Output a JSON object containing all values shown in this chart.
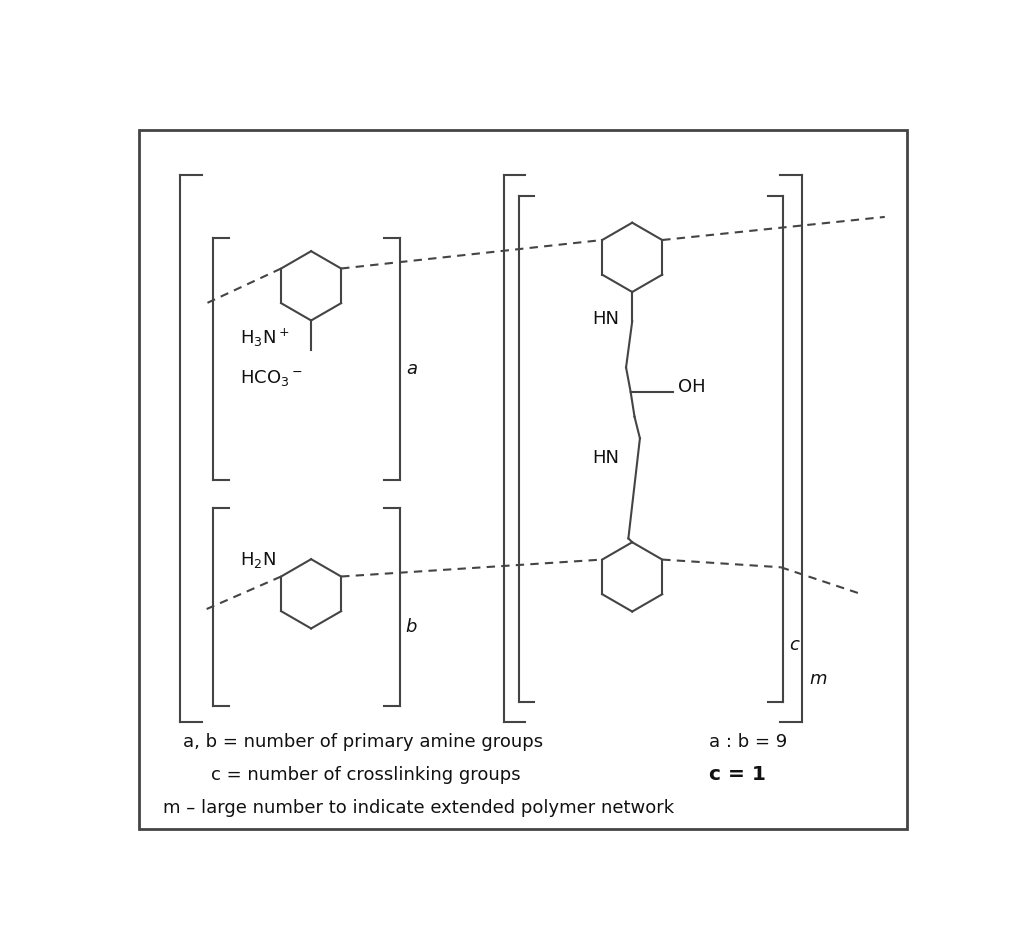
{
  "bg_color": "#ffffff",
  "border_color": "#444444",
  "line_color": "#444444",
  "text_color": "#111111",
  "fig_width": 10.21,
  "fig_height": 9.51,
  "dpi": 100,
  "legend1_left": "a, b = number of primary amine groups",
  "legend1_right": "a : b = 9",
  "legend2_left": "c = number of crosslinking groups",
  "legend2_right": "c = 1",
  "legend3": "m – large number to indicate extended polymer network"
}
